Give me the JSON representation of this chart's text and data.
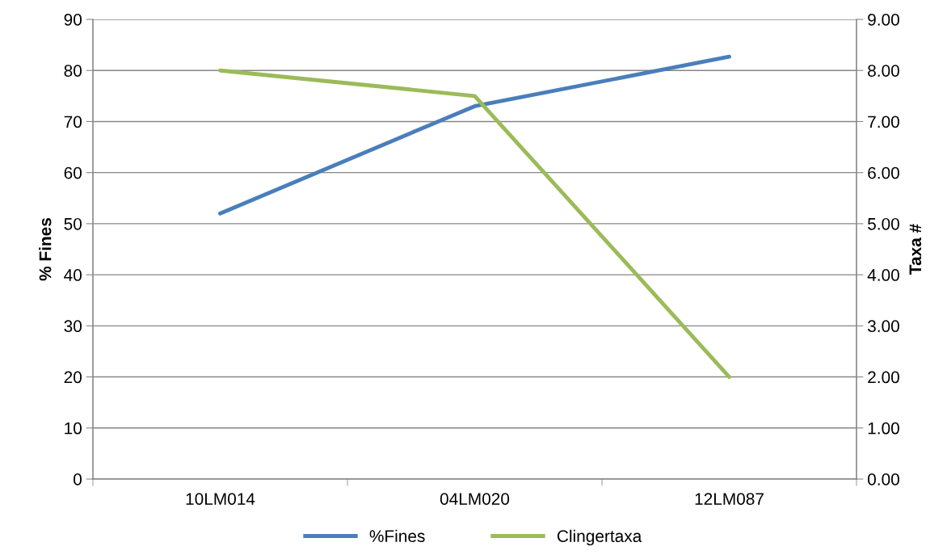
{
  "chart_data": {
    "type": "line",
    "ylabel": "% Fines",
    "y2label": "Taxa #",
    "categories": [
      "10LM014",
      "04LM020",
      "12LM087"
    ],
    "series": [
      {
        "name": "%Fines",
        "color": "#4a7ebb",
        "values": [
          52,
          73,
          82.7
        ]
      },
      {
        "name": "Clingertaxa",
        "color": "#9bbb59",
        "values": [
          8.0,
          7.5,
          2.0
        ],
        "axis": "y2"
      }
    ],
    "ylim": [
      0,
      90
    ],
    "yticks": [
      0,
      10,
      20,
      30,
      40,
      50,
      60,
      70,
      80,
      90
    ],
    "y2lim": [
      0,
      9
    ],
    "y2ticks": [
      {
        "value": 0,
        "label": "0.00"
      },
      {
        "value": 1,
        "label": "1.00"
      },
      {
        "value": 2,
        "label": "2.00"
      },
      {
        "value": 3,
        "label": "3.00"
      },
      {
        "value": 4,
        "label": "4.00"
      },
      {
        "value": 5,
        "label": "5.00"
      },
      {
        "value": 6,
        "label": "6.00"
      },
      {
        "value": 7,
        "label": "7.00"
      },
      {
        "value": 8,
        "label": "8.00"
      },
      {
        "value": 9,
        "label": "9.00"
      }
    ],
    "grid": "y",
    "legend": "bottom",
    "marker": "none",
    "line_style": "solid"
  }
}
